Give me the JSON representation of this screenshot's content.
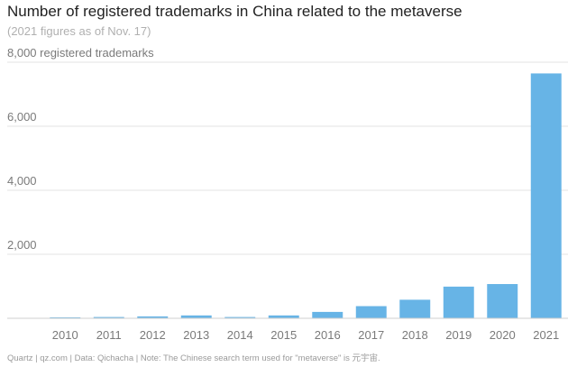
{
  "chart_data": {
    "type": "bar",
    "title": "Number of registered trademarks in China related to the metaverse",
    "subtitle": "(2021 figures as of Nov. 17)",
    "ylabel": "registered trademarks",
    "xlabel": "",
    "categories": [
      "2010",
      "2011",
      "2012",
      "2013",
      "2014",
      "2015",
      "2016",
      "2017",
      "2018",
      "2019",
      "2020",
      "2021"
    ],
    "values": [
      30,
      40,
      60,
      90,
      40,
      90,
      200,
      380,
      580,
      990,
      1070,
      7650
    ],
    "ylim": [
      0,
      8000
    ],
    "yticks": [
      0,
      2000,
      4000,
      6000,
      8000
    ],
    "ytick_labels": [
      "",
      "2,000",
      "4,000",
      "6,000",
      "8,000"
    ],
    "grid": true,
    "legend": "none",
    "bar_color": "#67b4e6"
  },
  "footer": "Quartz | qz.com | Data: Qichacha | Note: The Chinese search term used for \"metaverse\" is 元宇宙."
}
